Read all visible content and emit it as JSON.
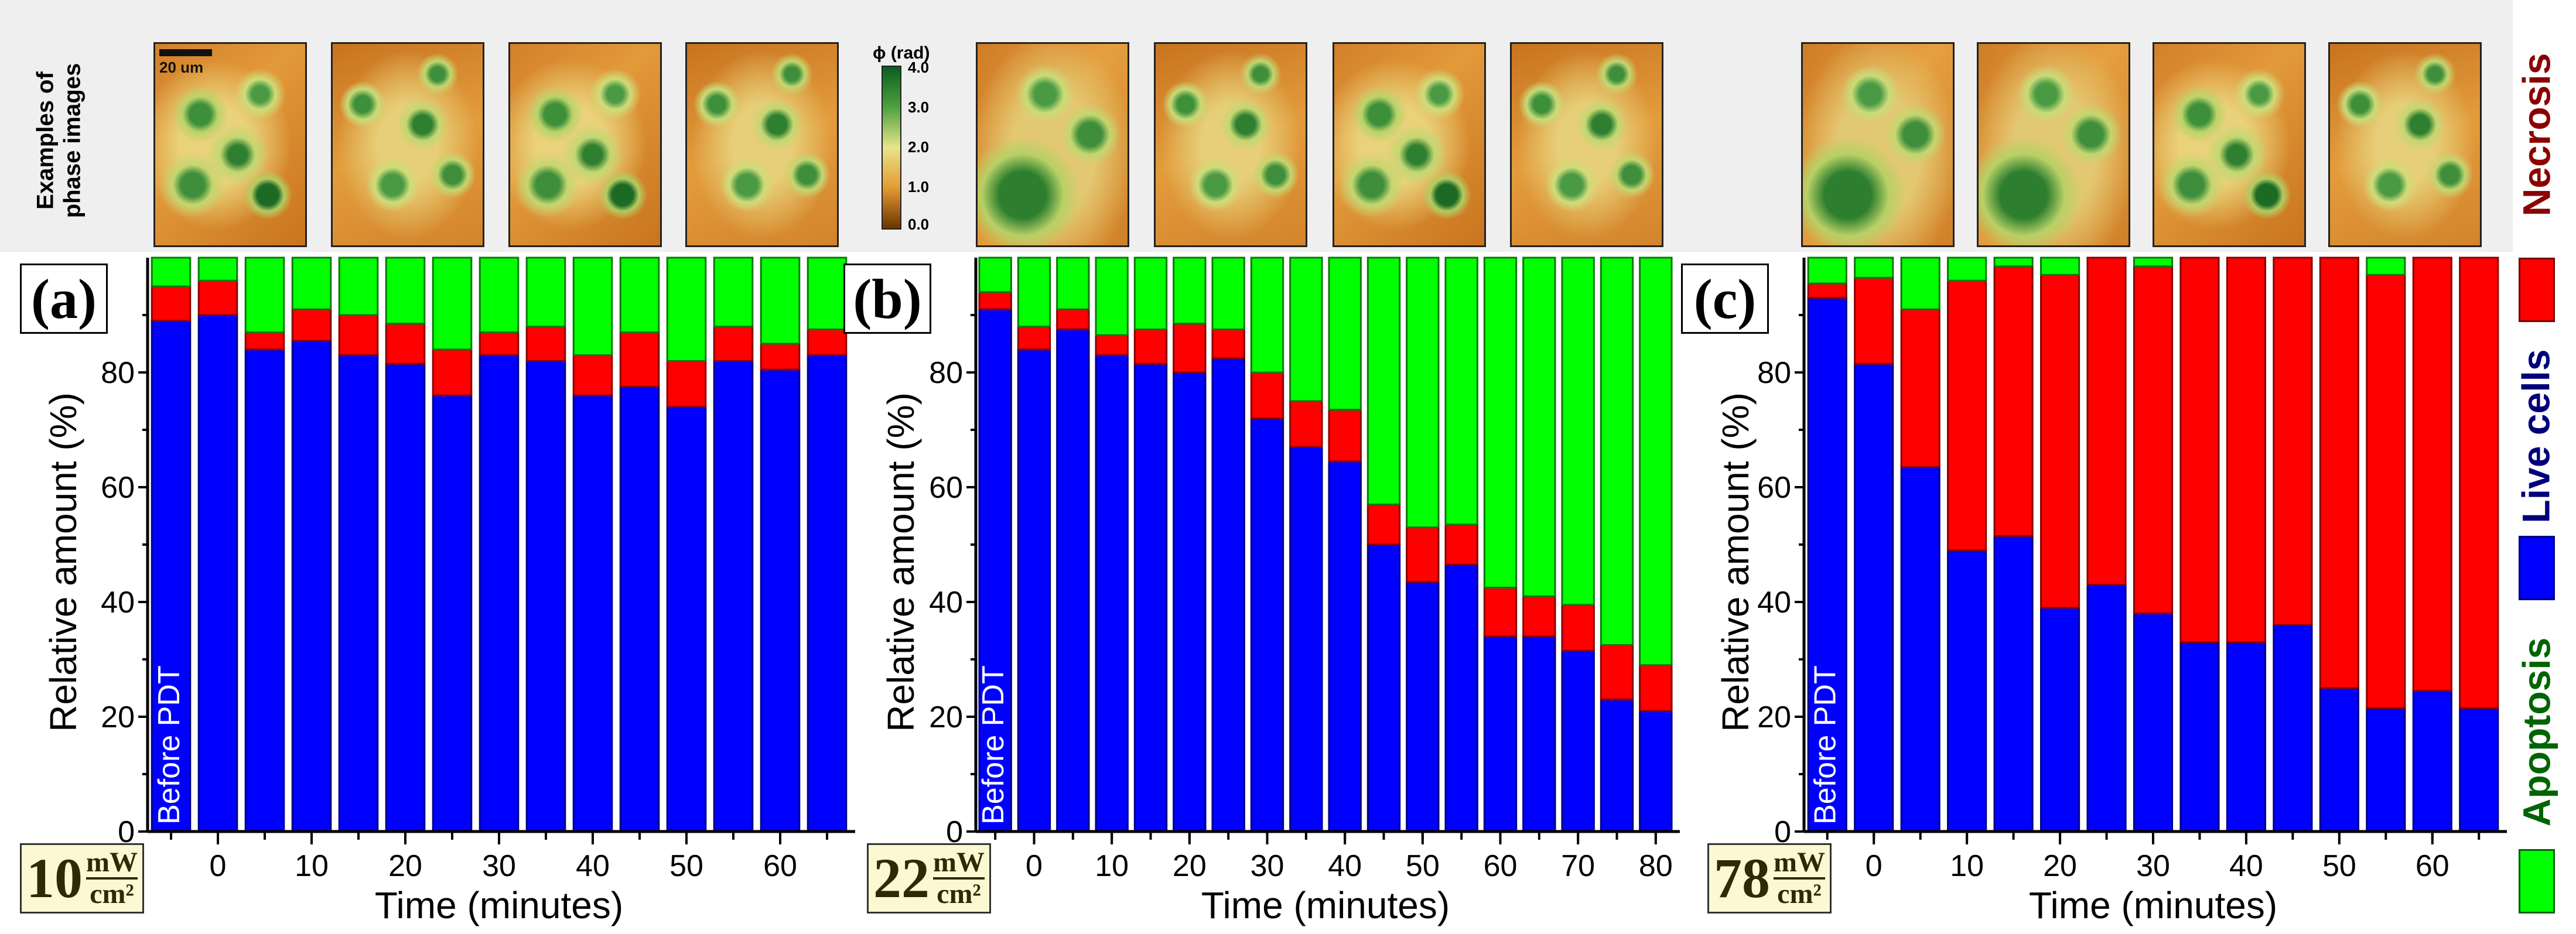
{
  "figure": {
    "side_label": "Examples of\nphase images",
    "scale_bar": "20 um",
    "colorbar": {
      "label": "ϕ (rad)",
      "ticks": [
        "4.0",
        "3.0",
        "2.0",
        "1.0",
        "0.0"
      ]
    },
    "legend": [
      {
        "name": "Necrosis",
        "color": "#ff0000",
        "text_color": "#8b0000"
      },
      {
        "name": "Live cells",
        "color": "#0000ff",
        "text_color": "#00007a"
      },
      {
        "name": "Apoptosis",
        "color": "#00ff00",
        "text_color": "#006400"
      }
    ]
  },
  "chart_data": [
    {
      "type": "bar",
      "stacked": true,
      "panel": "(a)",
      "power": {
        "value": "10",
        "num": "mW",
        "den": "cm²"
      },
      "categories": [
        "Before PDT",
        "0",
        "5",
        "10",
        "15",
        "20",
        "25",
        "30",
        "35",
        "40",
        "45",
        "50",
        "55",
        "60",
        "65"
      ],
      "first_bar_label": "Before PDT",
      "x_tick_labels": [
        "0",
        "10",
        "20",
        "30",
        "40",
        "50",
        "60"
      ],
      "xlabel": "Time (minutes)",
      "ylabel": "Relative amount (%)",
      "ylim": [
        0,
        100
      ],
      "yticks": [
        "0",
        "20",
        "40",
        "60",
        "80"
      ],
      "series": [
        {
          "name": "Live cells",
          "color": "#0000ff",
          "values": [
            89,
            90,
            84,
            85.5,
            83,
            81.5,
            76,
            83,
            82,
            76,
            77.5,
            74,
            82,
            80.5,
            83
          ]
        },
        {
          "name": "Necrosis",
          "color": "#ff0000",
          "values": [
            6,
            6,
            3,
            5.5,
            7,
            7,
            8,
            4,
            6,
            7,
            9.5,
            8,
            6,
            4.5,
            4.5
          ]
        },
        {
          "name": "Apoptosis",
          "color": "#00ff00",
          "values": [
            5,
            4,
            13,
            9,
            10,
            11.5,
            16,
            13,
            12,
            17,
            13,
            18,
            12,
            15,
            12.5
          ]
        }
      ]
    },
    {
      "type": "bar",
      "stacked": true,
      "panel": "(b)",
      "power": {
        "value": "22",
        "num": "mW",
        "den": "cm²"
      },
      "categories": [
        "Before PDT",
        "0",
        "5",
        "10",
        "15",
        "20",
        "25",
        "30",
        "35",
        "40",
        "45",
        "50",
        "55",
        "60",
        "65",
        "70",
        "75",
        "80"
      ],
      "first_bar_label": "Before PDT",
      "x_tick_labels": [
        "0",
        "10",
        "20",
        "30",
        "40",
        "50",
        "60",
        "70",
        "80"
      ],
      "xlabel": "Time (minutes)",
      "ylabel": "Relative amount (%)",
      "ylim": [
        0,
        100
      ],
      "yticks": [
        "0",
        "20",
        "40",
        "60",
        "80"
      ],
      "series": [
        {
          "name": "Live cells",
          "color": "#0000ff",
          "values": [
            91,
            84,
            87.5,
            83,
            81.5,
            80,
            82.5,
            72,
            67,
            64.5,
            50,
            43.5,
            46.5,
            34,
            34,
            31.5,
            23,
            21
          ]
        },
        {
          "name": "Necrosis",
          "color": "#ff0000",
          "values": [
            3,
            4,
            3.5,
            3.5,
            6,
            8.5,
            5,
            8,
            8,
            9,
            7,
            9.5,
            7,
            8.5,
            7,
            8,
            9.5,
            8
          ]
        },
        {
          "name": "Apoptosis",
          "color": "#00ff00",
          "values": [
            6,
            12,
            9,
            13.5,
            12.5,
            11.5,
            12.5,
            20,
            25,
            26.5,
            43,
            47,
            46.5,
            57.5,
            59,
            60.5,
            67.5,
            71
          ]
        }
      ]
    },
    {
      "type": "bar",
      "stacked": true,
      "panel": "(c)",
      "power": {
        "value": "78",
        "num": "mW",
        "den": "cm²"
      },
      "categories": [
        "Before PDT",
        "0",
        "5",
        "10",
        "15",
        "20",
        "25",
        "30",
        "35",
        "40",
        "45",
        "50",
        "55",
        "60",
        "65"
      ],
      "first_bar_label": "Before PDT",
      "x_tick_labels": [
        "0",
        "10",
        "20",
        "30",
        "40",
        "50",
        "60"
      ],
      "xlabel": "Time (minutes)",
      "ylabel": "Relative amount (%)",
      "ylim": [
        0,
        100
      ],
      "yticks": [
        "0",
        "20",
        "40",
        "60",
        "80"
      ],
      "series": [
        {
          "name": "Live cells",
          "color": "#0000ff",
          "values": [
            93,
            81.5,
            63.5,
            49,
            51.5,
            39,
            43,
            38,
            33,
            33,
            36,
            25,
            21.5,
            24.5,
            21.5
          ]
        },
        {
          "name": "Necrosis",
          "color": "#ff0000",
          "values": [
            2.5,
            15,
            27.5,
            47,
            47,
            58,
            57,
            60.5,
            67,
            67,
            64,
            75,
            75.5,
            75.5,
            78.5
          ]
        },
        {
          "name": "Apoptosis",
          "color": "#00ff00",
          "values": [
            4.5,
            3.5,
            9,
            4,
            1.5,
            3,
            0,
            1.5,
            0,
            0,
            0,
            0,
            3,
            0,
            0
          ]
        }
      ]
    }
  ]
}
